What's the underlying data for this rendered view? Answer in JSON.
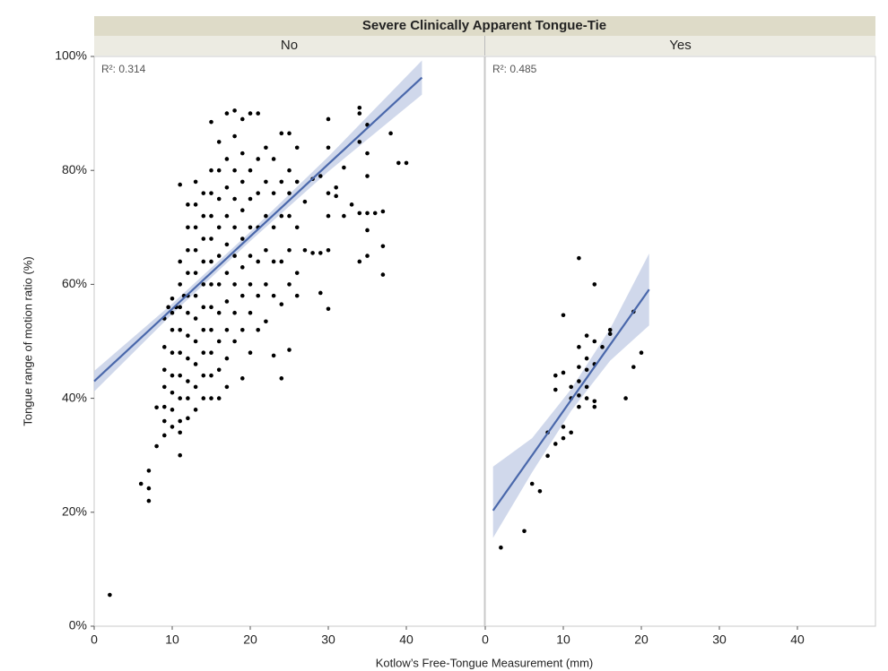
{
  "title": "Severe Clinically Apparent Tongue-Tie",
  "xlabel": "Kotlow’s Free-Tongue Measurement (mm)",
  "ylabel": "Tongue range of motion ratio (%)",
  "chart_data": [
    {
      "type": "scatter",
      "facet": "No",
      "annotation": "R²: 0.314",
      "color": "#000000",
      "xlim": [
        0,
        50
      ],
      "ylim": [
        0,
        100
      ],
      "xticks": [
        0,
        10,
        20,
        30,
        40
      ],
      "yticks": [
        {
          "value": 0,
          "label": "0%"
        },
        {
          "value": 20,
          "label": "20%"
        },
        {
          "value": 40,
          "label": "40%"
        },
        {
          "value": 60,
          "label": "60%"
        },
        {
          "value": 80,
          "label": "80%"
        },
        {
          "value": 100,
          "label": "100%"
        }
      ],
      "x": [
        2,
        6,
        7,
        7,
        7,
        8,
        8,
        9,
        9,
        9,
        9,
        9,
        9,
        9,
        10,
        10,
        10,
        10,
        10,
        10,
        10,
        10,
        11,
        11,
        11,
        11,
        11,
        11,
        11,
        11,
        11,
        11,
        11,
        12,
        12,
        12,
        12,
        12,
        12,
        12,
        12,
        12,
        12,
        12,
        13,
        13,
        13,
        13,
        13,
        13,
        13,
        13,
        13,
        13,
        13,
        14,
        14,
        14,
        14,
        14,
        14,
        14,
        14,
        14,
        14,
        15,
        15,
        15,
        15,
        15,
        15,
        15,
        15,
        15,
        15,
        15,
        15,
        16,
        16,
        16,
        16,
        16,
        16,
        16,
        16,
        16,
        16,
        17,
        17,
        17,
        17,
        17,
        17,
        17,
        17,
        17,
        17,
        18,
        18,
        18,
        18,
        18,
        18,
        18,
        18,
        18,
        19,
        19,
        19,
        19,
        19,
        19,
        19,
        19,
        19,
        20,
        20,
        20,
        20,
        20,
        20,
        20,
        20,
        21,
        21,
        21,
        21,
        21,
        21,
        21,
        22,
        22,
        22,
        22,
        22,
        22,
        23,
        23,
        23,
        23,
        23,
        23,
        24,
        24,
        24,
        24,
        24,
        24,
        25,
        25,
        25,
        25,
        25,
        25,
        25,
        26,
        26,
        26,
        26,
        26,
        27,
        27,
        28,
        28,
        29,
        29,
        29,
        30,
        30,
        30,
        30,
        30,
        30,
        31,
        31,
        32,
        32,
        33,
        34,
        34,
        34,
        34,
        34,
        35,
        35,
        35,
        35,
        35,
        35,
        36,
        37,
        37,
        37,
        38,
        39,
        40,
        9.5,
        10.5,
        11.5
      ],
      "y": [
        5.5,
        25,
        27.3,
        24.2,
        22,
        31.6,
        38.4,
        33.5,
        36,
        38.5,
        42,
        45,
        49,
        54,
        35,
        38,
        41,
        44,
        48,
        52,
        55,
        57.5,
        30,
        34,
        36,
        40,
        44,
        48,
        52,
        56,
        60,
        64,
        77.5,
        36.5,
        40,
        43,
        47,
        51,
        55,
        58,
        62,
        66,
        70,
        74,
        38,
        42,
        46,
        50,
        54,
        58,
        62,
        66,
        70,
        74,
        78,
        40,
        44,
        48,
        52,
        56,
        60,
        64,
        68,
        72,
        76,
        40,
        44,
        48,
        52,
        56,
        60,
        64,
        68,
        72,
        76,
        80,
        88.5,
        40,
        45,
        50,
        55,
        60,
        65,
        70,
        75,
        80,
        85,
        42,
        47,
        52,
        57,
        62,
        67,
        72,
        77,
        82,
        90,
        50,
        55,
        60,
        65,
        70,
        75,
        80,
        86,
        90.5,
        43.5,
        52,
        58,
        63,
        68,
        73,
        78,
        83,
        89,
        48,
        55,
        60,
        65,
        70,
        75,
        80,
        90,
        52,
        58,
        64,
        70,
        76,
        82,
        90,
        53.5,
        60,
        66,
        72,
        78,
        84,
        47.5,
        58,
        64,
        70,
        76,
        82,
        43.5,
        56.5,
        64,
        72,
        78,
        86.5,
        48.5,
        60,
        66,
        72,
        76,
        80,
        86.5,
        58,
        62,
        70,
        78,
        84,
        66,
        74.5,
        65.5,
        78.5,
        58.5,
        65.5,
        79,
        55.7,
        66,
        72,
        76,
        84,
        89,
        75.5,
        77,
        72,
        80.5,
        74,
        72.5,
        64,
        85,
        91,
        90,
        65,
        69.5,
        72.5,
        79,
        83,
        88,
        72.5,
        61.7,
        66.7,
        72.8,
        86.5,
        81.3,
        81.3,
        56,
        56,
        58
      ],
      "fit": {
        "color": "#4a68ab",
        "band_color": "#c8d1e8",
        "x": [
          0,
          10,
          20,
          30,
          42
        ],
        "y": [
          43,
          55.7,
          68.4,
          81.1,
          96.3
        ],
        "lower": [
          41.2,
          54.8,
          67.6,
          79.8,
          93.3
        ],
        "upper": [
          44.8,
          56.6,
          69.2,
          82.4,
          99.3
        ]
      }
    },
    {
      "type": "scatter",
      "facet": "Yes",
      "annotation": "R²: 0.485",
      "color": "#000000",
      "xlim": [
        0,
        50
      ],
      "ylim": [
        0,
        100
      ],
      "xticks": [
        0,
        10,
        20,
        30,
        40
      ],
      "x": [
        2,
        5,
        6,
        7,
        8,
        8,
        9,
        9,
        9,
        10,
        10,
        10,
        10,
        11,
        11,
        11,
        12,
        12,
        12,
        12,
        12,
        12,
        13,
        13,
        13,
        13,
        13,
        14,
        14,
        14,
        14,
        14,
        15,
        16,
        16,
        18,
        19,
        19,
        20
      ],
      "y": [
        13.8,
        16.7,
        25,
        23.7,
        29.9,
        34,
        32,
        41.5,
        44,
        33,
        35,
        44.5,
        54.6,
        34,
        40,
        42,
        38.5,
        40.5,
        43,
        45.5,
        49,
        64.6,
        40,
        42,
        45,
        51,
        47,
        38.5,
        39.5,
        46,
        50,
        60,
        49,
        51.3,
        52,
        40,
        45.5,
        55.2,
        48
      ],
      "fit": {
        "color": "#4a68ab",
        "band_color": "#c8d1e8",
        "x": [
          1,
          6,
          11,
          16,
          21
        ],
        "y": [
          20.3,
          30,
          39.7,
          49.4,
          59.1
        ],
        "lower": [
          15.5,
          27,
          37.8,
          46.6,
          52.8
        ],
        "upper": [
          28,
          33,
          41.6,
          52.2,
          65.4
        ]
      }
    }
  ]
}
